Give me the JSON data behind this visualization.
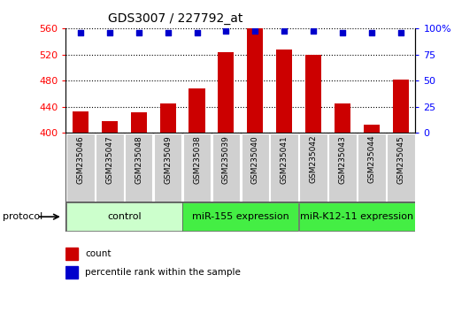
{
  "title": "GDS3007 / 227792_at",
  "categories": [
    "GSM235046",
    "GSM235047",
    "GSM235048",
    "GSM235049",
    "GSM235038",
    "GSM235039",
    "GSM235040",
    "GSM235041",
    "GSM235042",
    "GSM235043",
    "GSM235044",
    "GSM235045"
  ],
  "bar_values": [
    433,
    418,
    432,
    445,
    468,
    524,
    560,
    528,
    520,
    445,
    413,
    481
  ],
  "percentile_values": [
    96,
    96,
    96,
    96,
    96,
    97,
    97,
    97,
    97,
    96,
    96,
    96
  ],
  "bar_color": "#cc0000",
  "dot_color": "#0000cc",
  "ylim_left": [
    400,
    560
  ],
  "ylim_right": [
    0,
    100
  ],
  "yticks_left": [
    400,
    440,
    480,
    520,
    560
  ],
  "yticks_right": [
    0,
    25,
    50,
    75,
    100
  ],
  "group_configs": [
    {
      "start": 0,
      "end": 3,
      "color": "#ccffcc",
      "label": "control"
    },
    {
      "start": 4,
      "end": 7,
      "color": "#44ee44",
      "label": "miR-155 expression"
    },
    {
      "start": 8,
      "end": 11,
      "color": "#44ee44",
      "label": "miR-K12-11 expression"
    }
  ],
  "protocol_label": "protocol",
  "legend_count_label": "count",
  "legend_pct_label": "percentile rank within the sample",
  "bar_width": 0.55,
  "tick_label_fontsize": 6.5,
  "axis_label_fontsize": 8,
  "title_fontsize": 10,
  "legend_fontsize": 7.5,
  "group_label_fontsize": 8
}
